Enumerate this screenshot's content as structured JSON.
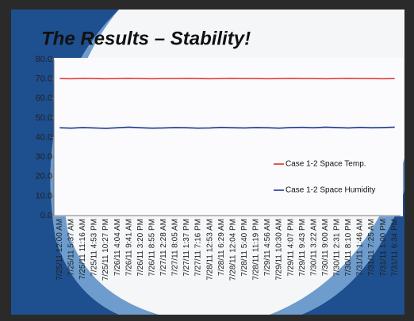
{
  "chart_data": {
    "type": "line",
    "title": "The Results – Stability!",
    "categories": [
      "7/25/11 12:00 AM",
      "7/25/11 5:37 AM",
      "7/25/11 11:16 AM",
      "7/25/11 4:53 PM",
      "7/25/11 10:27 PM",
      "7/26/11 4:04 AM",
      "7/26/11 9:41 AM",
      "7/26/11 3:20 PM",
      "7/26/11 8:55 PM",
      "7/27/11 2:28 AM",
      "7/27/11 8:05 AM",
      "7/27/11 1:37 PM",
      "7/27/11 7:16 PM",
      "7/28/11 12:53 AM",
      "7/28/11 6:29 AM",
      "7/28/11 12:04 PM",
      "7/28/11 5:40 PM",
      "7/28/11 11:19 PM",
      "7/29/11 4:56 AM",
      "7/29/11 10:30 AM",
      "7/29/11 4:07 PM",
      "7/29/11 9:43 PM",
      "7/30/11 3:22 AM",
      "7/30/11 9:00 AM",
      "7/30/11 2:31 PM",
      "7/30/11 8:10 PM",
      "7/31/11 1:46 AM",
      "7/31/11 7:25 AM",
      "7/31/11 1:00 PM",
      "7/31/11 6:34 PM"
    ],
    "series": [
      {
        "name": "Case 1-2 Space Temp.",
        "color": "#e03030",
        "values": [
          70.2,
          70.1,
          70.3,
          70.2,
          70.1,
          70.2,
          70.3,
          70.2,
          70.1,
          70.2,
          70.2,
          70.3,
          70.2,
          70.1,
          70.2,
          70.3,
          70.2,
          70.2,
          70.1,
          70.2,
          70.3,
          70.2,
          70.2,
          70.1,
          70.2,
          70.3,
          70.2,
          70.2,
          70.1,
          70.2
        ]
      },
      {
        "name": "Case 1-2 Space Humidity",
        "color": "#1f3a93",
        "values": [
          45.0,
          44.8,
          45.1,
          44.9,
          44.7,
          45.0,
          45.3,
          45.0,
          44.8,
          44.9,
          45.1,
          45.0,
          44.8,
          44.9,
          45.2,
          45.0,
          44.9,
          45.1,
          45.0,
          44.8,
          45.1,
          45.2,
          45.0,
          45.3,
          45.1,
          44.9,
          45.2,
          45.0,
          45.1,
          45.3
        ]
      }
    ],
    "ylim": [
      0,
      80
    ],
    "yticks": [
      {
        "value": 0,
        "label": "0.0"
      },
      {
        "value": 10,
        "label": "10.0"
      },
      {
        "value": 20,
        "label": "20.0"
      },
      {
        "value": 30,
        "label": "30.0"
      },
      {
        "value": 40,
        "label": "40.0"
      },
      {
        "value": 50,
        "label": "50.0"
      },
      {
        "value": 60,
        "label": "60.0"
      },
      {
        "value": 70,
        "label": "70.0"
      },
      {
        "value": 80,
        "label": "80.0"
      }
    ],
    "grid": false
  }
}
